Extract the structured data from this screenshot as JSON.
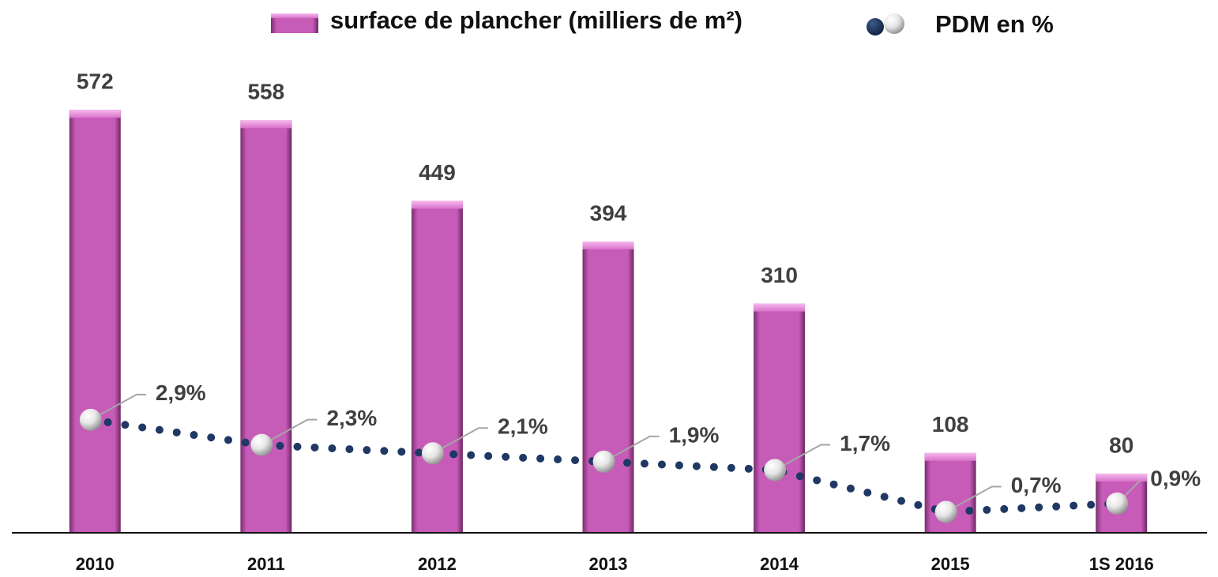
{
  "chart_data": {
    "type": "bar",
    "categories": [
      "2010",
      "2011",
      "2012",
      "2013",
      "2014",
      "2015",
      "1S 2016"
    ],
    "series": [
      {
        "name": "surface de plancher (milliers de m²)",
        "type": "bar",
        "color": "#c75bb8",
        "values": [
          572,
          558,
          449,
          394,
          310,
          108,
          80
        ]
      },
      {
        "name": "PDM en %",
        "type": "line",
        "color": "#1f3864",
        "axis": "y2",
        "values": [
          2.9,
          2.3,
          2.1,
          1.9,
          1.7,
          0.7,
          0.9
        ],
        "value_labels": [
          "2,9%",
          "2,3%",
          "2,1%",
          "1,9%",
          "1,7%",
          "0,7%",
          "0,9%"
        ]
      }
    ],
    "ylim": [
      0,
      600
    ],
    "y2lim": [
      0.2,
      10.8
    ],
    "legend": "top"
  }
}
